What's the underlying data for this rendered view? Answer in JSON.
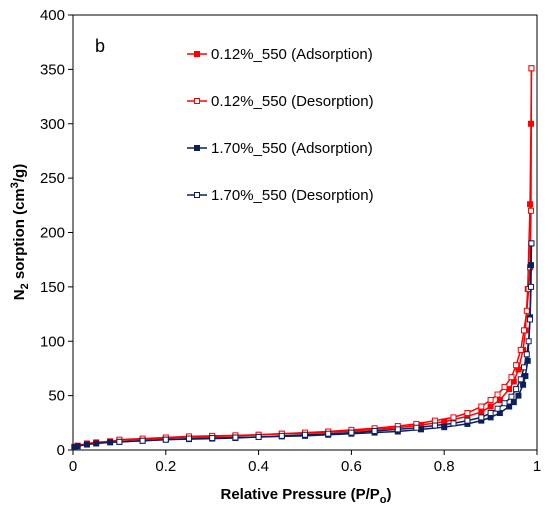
{
  "chart_data": {
    "type": "line",
    "panel_label": "b",
    "xlabel": "Relative Pressure (P/P",
    "xlabel_sub": "o",
    "xlabel_end": ")",
    "ylabel_main": "N",
    "ylabel_sub": "2",
    "ylabel_rest": " sorption (cm",
    "ylabel_sup": "3",
    "ylabel_end": "/g)",
    "xlim": [
      0,
      1
    ],
    "ylim": [
      0,
      400
    ],
    "xticks": [
      0,
      0.2,
      0.4,
      0.6,
      0.8,
      1
    ],
    "xtick_labels": [
      "0",
      "0.2",
      "0.4",
      "0.6",
      "0.8",
      "1"
    ],
    "yticks": [
      0,
      50,
      100,
      150,
      200,
      250,
      300,
      350,
      400
    ],
    "ytick_labels": [
      "0",
      "50",
      "100",
      "150",
      "200",
      "250",
      "300",
      "350",
      "400"
    ],
    "grid": false,
    "legend_position": "top-center",
    "series": [
      {
        "name": "0.12%_550 (Adsorption)",
        "color": "#ff0000",
        "marker": "filled-square",
        "x": [
          0.003,
          0.01,
          0.03,
          0.05,
          0.08,
          0.1,
          0.15,
          0.2,
          0.25,
          0.3,
          0.35,
          0.4,
          0.45,
          0.5,
          0.55,
          0.6,
          0.65,
          0.7,
          0.75,
          0.8,
          0.85,
          0.88,
          0.9,
          0.92,
          0.94,
          0.95,
          0.96,
          0.97,
          0.975,
          0.98,
          0.985,
          0.987,
          0.988
        ],
        "y": [
          3,
          4,
          6,
          7,
          8,
          9,
          10,
          11,
          12,
          12.5,
          13,
          14,
          15,
          15.5,
          16.5,
          17.5,
          19,
          20.5,
          23,
          26,
          31,
          35,
          40,
          46,
          56,
          63,
          74,
          92,
          110,
          148,
          226,
          300,
          351
        ]
      },
      {
        "name": "0.12%_550 (Desorption)",
        "color": "#ff0000",
        "marker": "open-square",
        "x": [
          0.988,
          0.987,
          0.985,
          0.982,
          0.978,
          0.972,
          0.965,
          0.955,
          0.945,
          0.93,
          0.915,
          0.9,
          0.88,
          0.85,
          0.82,
          0.78,
          0.74,
          0.7,
          0.65,
          0.6,
          0.55,
          0.5,
          0.45,
          0.4,
          0.35,
          0.3,
          0.25,
          0.2,
          0.15,
          0.1
        ],
        "y": [
          351,
          220,
          168,
          148,
          128,
          110,
          92,
          78,
          67,
          58,
          51,
          46,
          40,
          34,
          30,
          27,
          24,
          22,
          20,
          18.5,
          17,
          16,
          15,
          14,
          13.5,
          13,
          12.5,
          11.5,
          10.5,
          9.5
        ]
      },
      {
        "name": "1.70%_550 (Adsorption)",
        "color": "#0c1f5c",
        "marker": "filled-square",
        "x": [
          0.003,
          0.01,
          0.03,
          0.05,
          0.08,
          0.1,
          0.15,
          0.2,
          0.25,
          0.3,
          0.35,
          0.4,
          0.45,
          0.5,
          0.55,
          0.6,
          0.65,
          0.7,
          0.75,
          0.8,
          0.85,
          0.88,
          0.9,
          0.92,
          0.94,
          0.95,
          0.96,
          0.97,
          0.975,
          0.98,
          0.985,
          0.987,
          0.988
        ],
        "y": [
          2.5,
          3.5,
          5,
          6,
          7,
          7.5,
          8.5,
          9.5,
          10,
          10.5,
          11,
          12,
          12.5,
          13,
          14,
          15,
          16,
          17,
          19,
          21,
          24,
          27,
          30,
          34,
          40,
          44,
          50,
          60,
          68,
          82,
          122,
          170,
          190
        ]
      },
      {
        "name": "1.70%_550 (Desorption)",
        "color": "#0c1f5c",
        "marker": "open-square",
        "x": [
          0.988,
          0.987,
          0.985,
          0.982,
          0.978,
          0.972,
          0.965,
          0.955,
          0.945,
          0.93,
          0.915,
          0.9,
          0.88,
          0.85,
          0.82,
          0.78,
          0.74,
          0.7,
          0.65,
          0.6,
          0.55,
          0.5,
          0.45,
          0.4,
          0.35,
          0.3,
          0.25,
          0.2,
          0.15,
          0.1
        ],
        "y": [
          190,
          150,
          120,
          100,
          88,
          76,
          65,
          56,
          49,
          43,
          38,
          34,
          30,
          27,
          24.5,
          22.5,
          20.5,
          19,
          17.5,
          16,
          15,
          14,
          13,
          12,
          11.5,
          11,
          10.5,
          9.5,
          8.5,
          7.5
        ]
      }
    ]
  }
}
